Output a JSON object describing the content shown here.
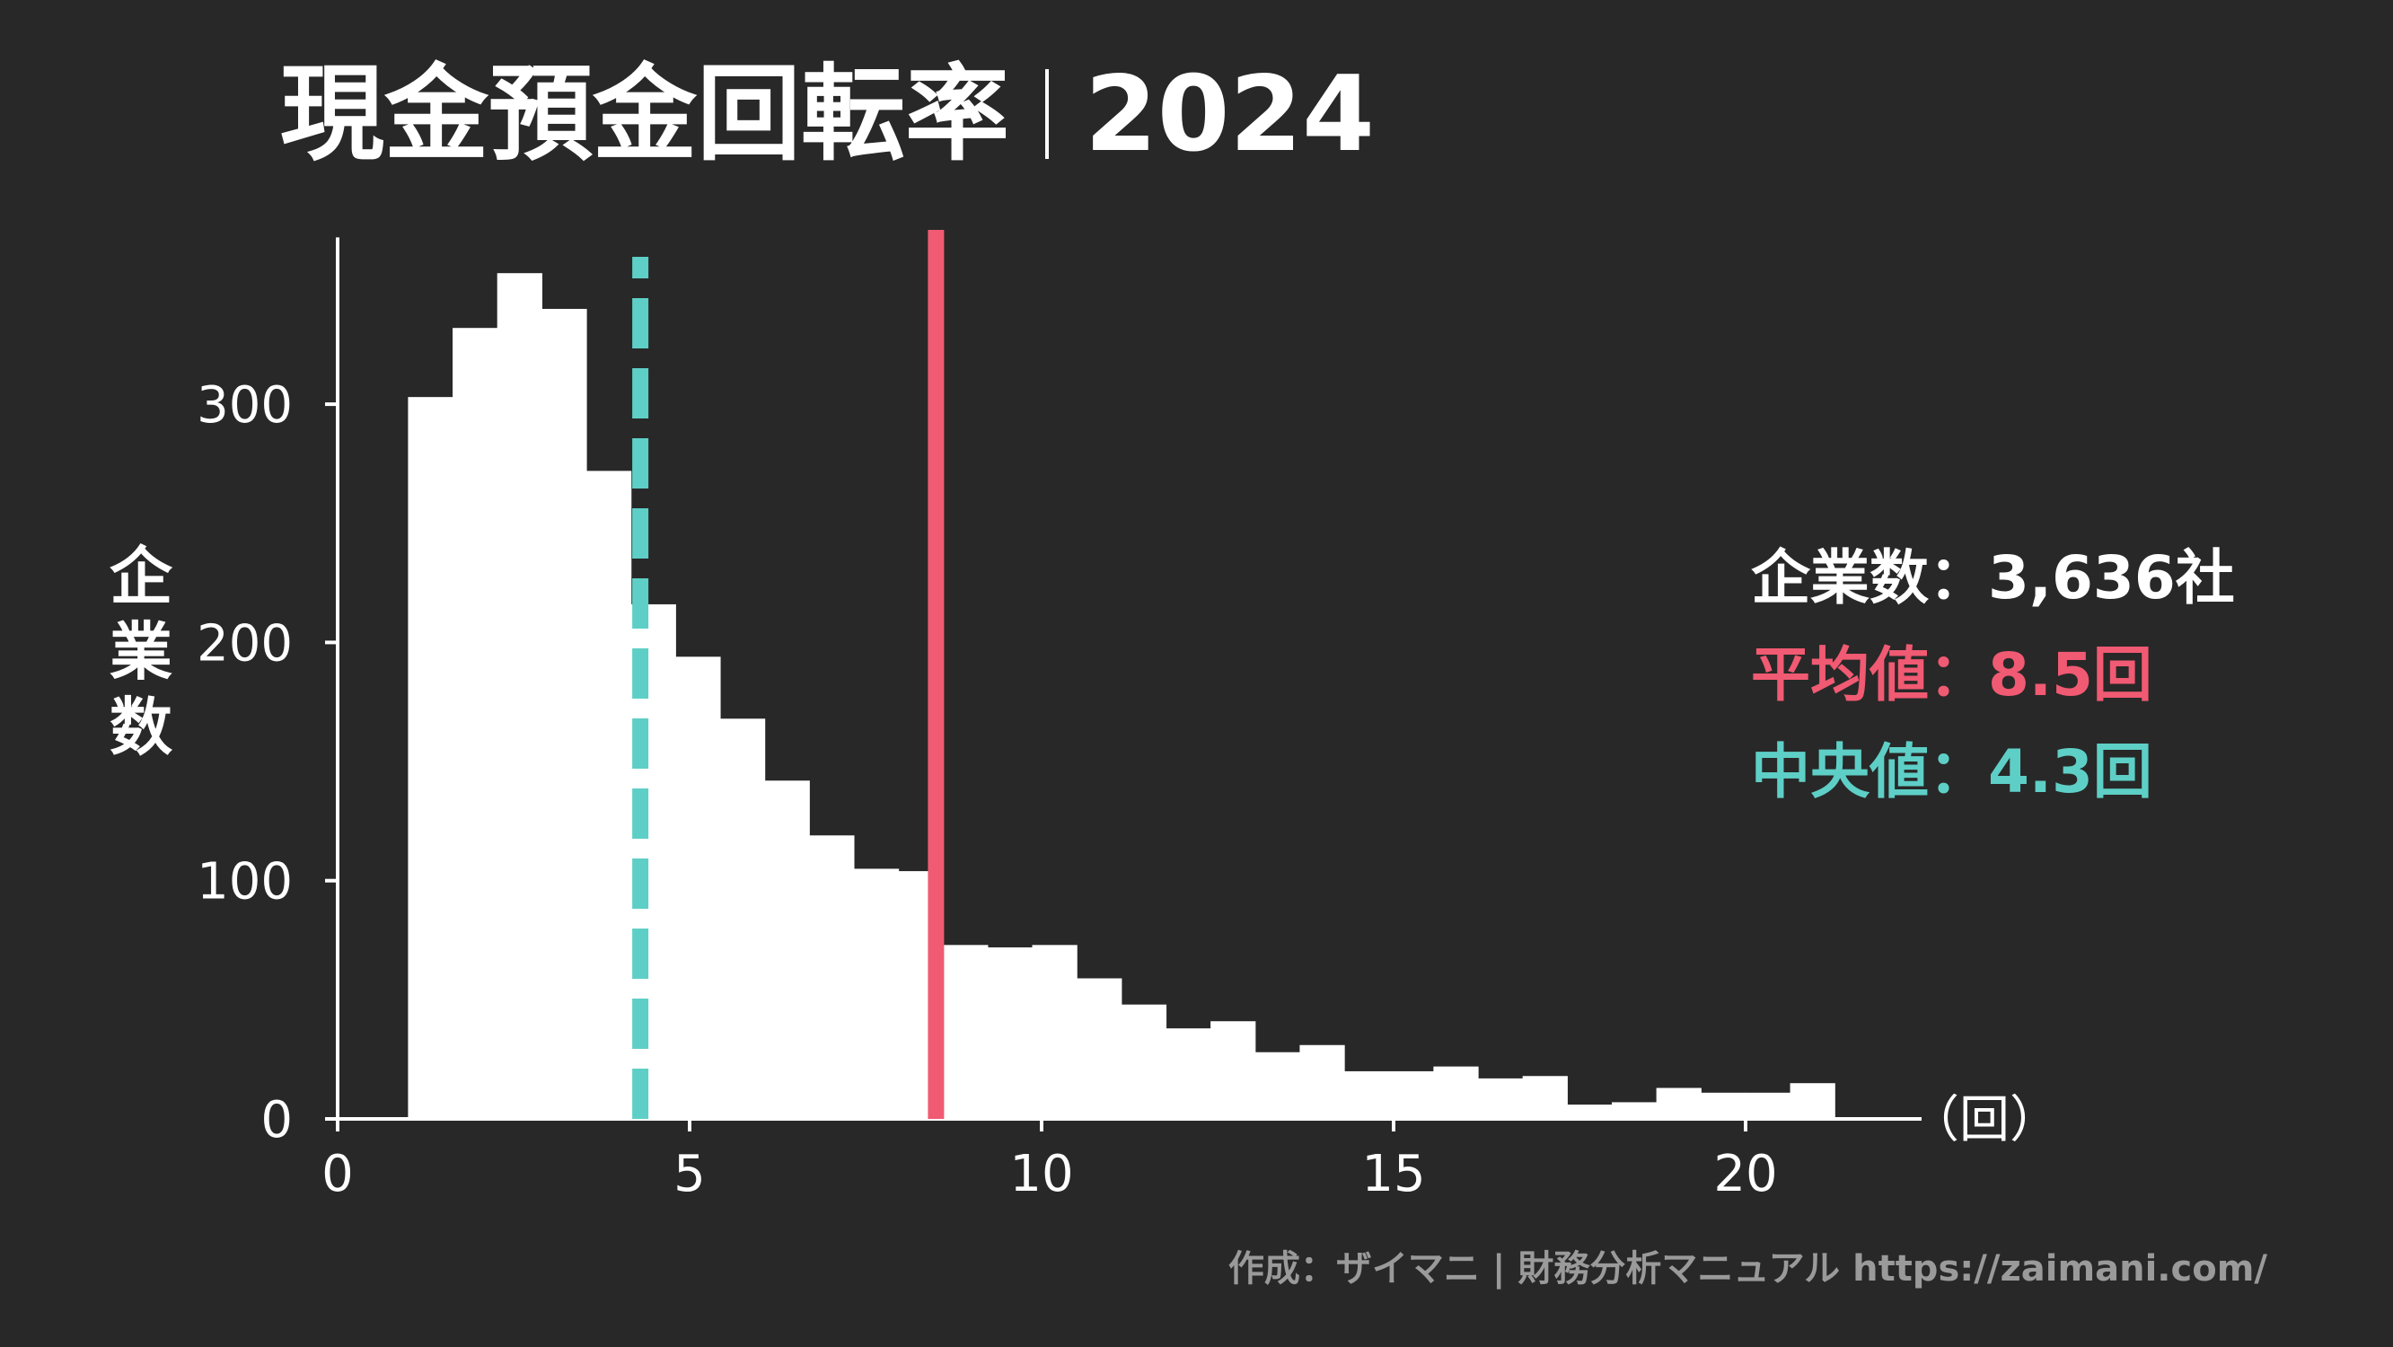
{
  "title": {
    "main": "現金預金回転率",
    "year": "2024"
  },
  "stats": {
    "companies_label": "企業数",
    "companies_value": "3,636社",
    "mean_label": "平均値",
    "mean_value": "8.5回",
    "median_label": "中央値",
    "median_value": "4.3回",
    "separator": "："
  },
  "footer": "作成：ザイマニ | 財務分析マニュアル https://zaimani.com/",
  "colors": {
    "background": "#282828",
    "bars": "#ffffff",
    "mean": "#f05a72",
    "median": "#5ecfc6",
    "axis": "#ffffff",
    "footer": "#9a9a9a"
  },
  "chart_data": {
    "type": "bar",
    "title": "現金預金回転率｜2024",
    "ylabel_chars": [
      "企",
      "業",
      "数"
    ],
    "xunit": "（回）",
    "xlim": [
      0,
      22.5
    ],
    "ylim": [
      0,
      370
    ],
    "xticks": [
      0,
      5,
      10,
      15,
      20
    ],
    "yticks": [
      0,
      100,
      200,
      300
    ],
    "bin_width": 0.6333,
    "bin_start": 1.0,
    "values": [
      303,
      332,
      355,
      340,
      272,
      216,
      194,
      168,
      142,
      119,
      105,
      104,
      73,
      72,
      73,
      59,
      48,
      38,
      41,
      28,
      31,
      20,
      20,
      22,
      17,
      18,
      6,
      7,
      13,
      11,
      11,
      15
    ],
    "mean": 8.5,
    "median": 4.3,
    "legend": "right",
    "grid": false
  }
}
